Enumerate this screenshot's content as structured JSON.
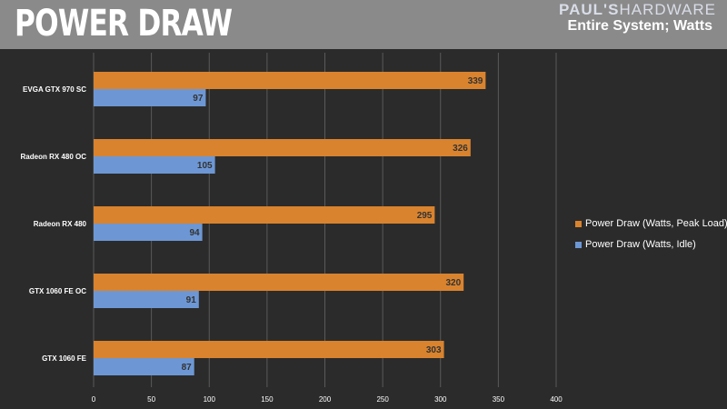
{
  "header": {
    "title": "POWER DRAW",
    "brand_part1": "PAUL'S",
    "brand_part2": "HARDWARE",
    "subtitle": "Entire System; Watts"
  },
  "colors": {
    "peak": "#d9832e",
    "idle": "#6d97d4",
    "background": "#2b2b2b",
    "header": "#8a8a8a",
    "grid": "#5a5a5a"
  },
  "chart_data": {
    "type": "bar",
    "orientation": "horizontal",
    "categories": [
      "EVGA GTX 970 SC",
      "Radeon RX 480 OC",
      "Radeon RX 480",
      "GTX 1060 FE OC",
      "GTX 1060 FE"
    ],
    "series": [
      {
        "name": "Power Draw (Watts, Peak Load)",
        "values": [
          339,
          326,
          295,
          320,
          303
        ]
      },
      {
        "name": "Power Draw (Watts, Idle)",
        "values": [
          97,
          105,
          94,
          91,
          87
        ]
      }
    ],
    "xlim": [
      0,
      400
    ],
    "xticks": [
      0,
      50,
      100,
      150,
      200,
      250,
      300,
      350,
      400
    ],
    "title": "POWER DRAW",
    "subtitle": "Entire System; Watts",
    "xlabel": "",
    "ylabel": "",
    "grid": true,
    "legend_position": "right",
    "data_labels": true
  }
}
